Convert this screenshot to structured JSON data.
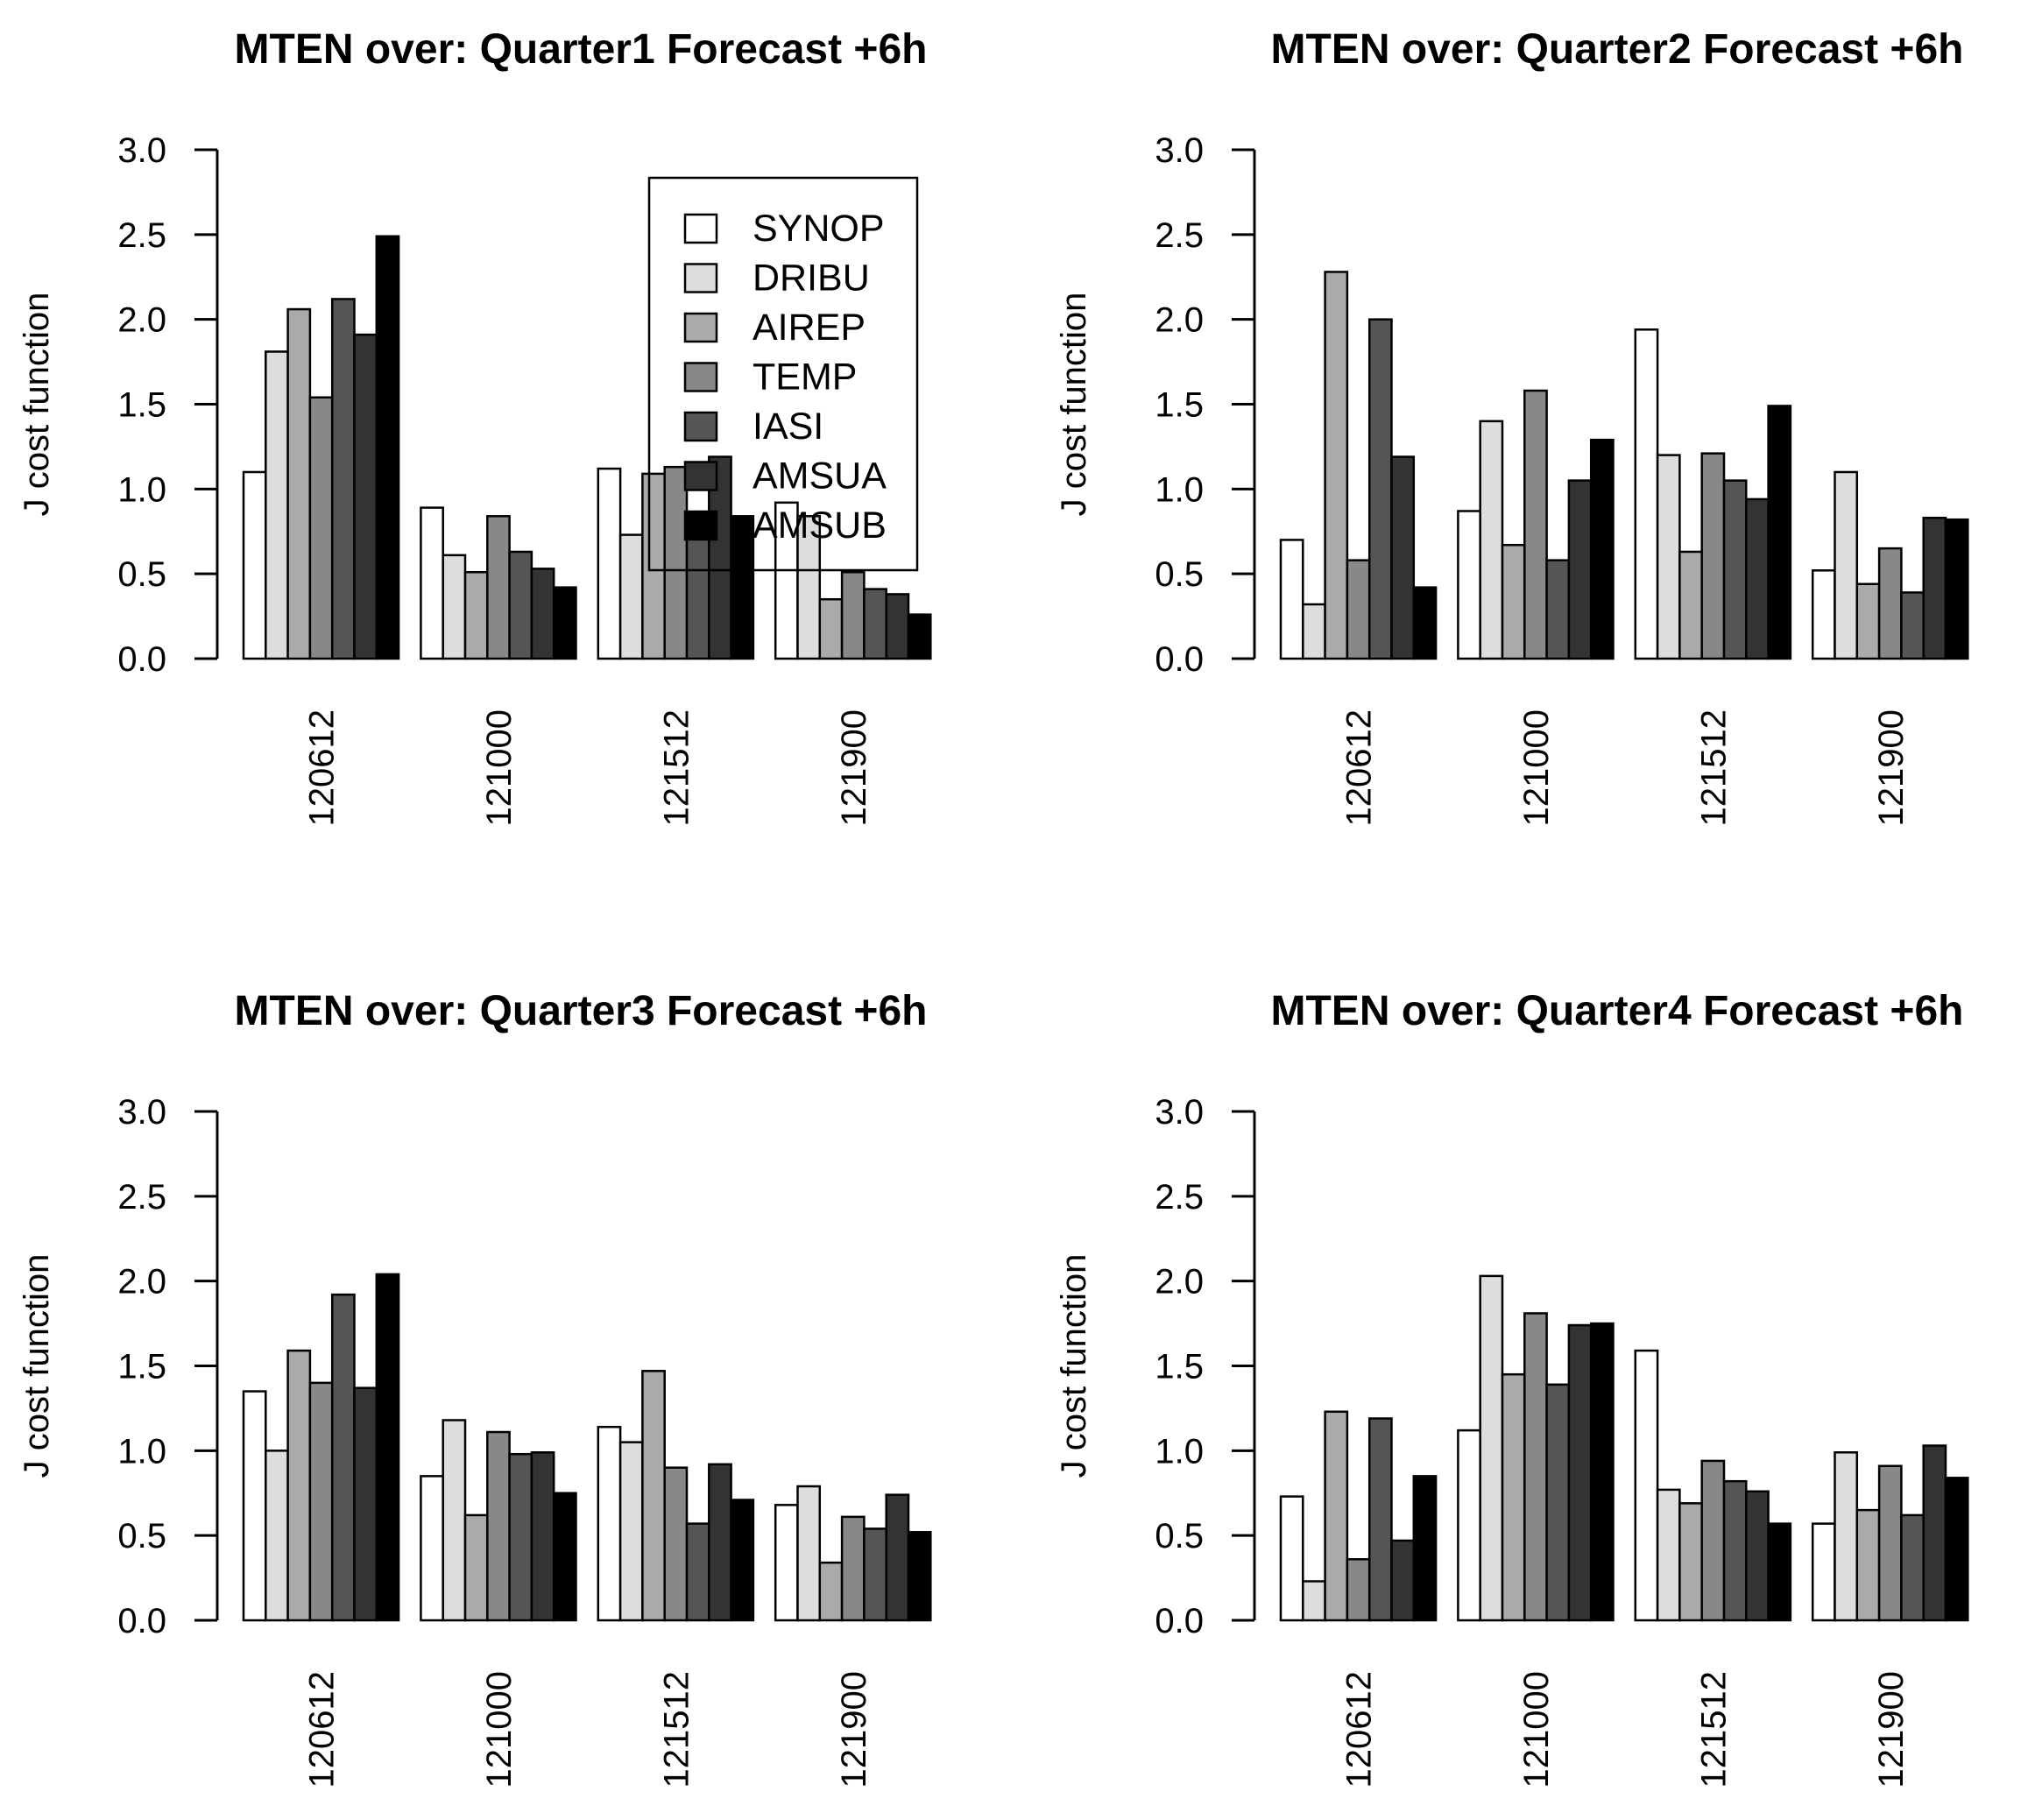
{
  "chart_data": [
    {
      "type": "bar",
      "title": "MTEN over: Quarter1 Forecast +6h",
      "xlabel": "",
      "ylabel": "J cost function",
      "ylim": [
        0,
        3
      ],
      "yticks": [
        "0.0",
        "0.5",
        "1.0",
        "1.5",
        "2.0",
        "2.5",
        "3.0"
      ],
      "categories": [
        "120612",
        "121000",
        "121512",
        "121900"
      ],
      "series": [
        {
          "name": "SYNOP",
          "values": [
            1.1,
            0.89,
            1.12,
            0.92
          ]
        },
        {
          "name": "DRIBU",
          "values": [
            1.81,
            0.61,
            0.73,
            0.84
          ]
        },
        {
          "name": "AIREP",
          "values": [
            2.06,
            0.51,
            1.09,
            0.35
          ]
        },
        {
          "name": "TEMP",
          "values": [
            1.54,
            0.84,
            1.13,
            0.51
          ]
        },
        {
          "name": "IASI",
          "values": [
            2.12,
            0.63,
            0.85,
            0.41
          ]
        },
        {
          "name": "AMSUA",
          "values": [
            1.91,
            0.53,
            1.19,
            0.38
          ]
        },
        {
          "name": "AMSUB",
          "values": [
            2.49,
            0.42,
            0.84,
            0.26
          ]
        }
      ],
      "legend": "top-right",
      "grid": false
    },
    {
      "type": "bar",
      "title": "MTEN over: Quarter2 Forecast +6h",
      "xlabel": "",
      "ylabel": "J cost function",
      "ylim": [
        0,
        3
      ],
      "yticks": [
        "0.0",
        "0.5",
        "1.0",
        "1.5",
        "2.0",
        "2.5",
        "3.0"
      ],
      "categories": [
        "120612",
        "121000",
        "121512",
        "121900"
      ],
      "series": [
        {
          "name": "SYNOP",
          "values": [
            0.7,
            0.87,
            1.94,
            0.52
          ]
        },
        {
          "name": "DRIBU",
          "values": [
            0.32,
            1.4,
            1.2,
            1.1
          ]
        },
        {
          "name": "AIREP",
          "values": [
            2.28,
            0.67,
            0.63,
            0.44
          ]
        },
        {
          "name": "TEMP",
          "values": [
            0.58,
            1.58,
            1.21,
            0.65
          ]
        },
        {
          "name": "IASI",
          "values": [
            2.0,
            0.58,
            1.05,
            0.39
          ]
        },
        {
          "name": "AMSUA",
          "values": [
            1.19,
            1.05,
            0.94,
            0.83
          ]
        },
        {
          "name": "AMSUB",
          "values": [
            0.42,
            1.29,
            1.49,
            0.82
          ]
        }
      ],
      "grid": false
    },
    {
      "type": "bar",
      "title": "MTEN over: Quarter3 Forecast +6h",
      "xlabel": "",
      "ylabel": "J cost function",
      "ylim": [
        0,
        3
      ],
      "yticks": [
        "0.0",
        "0.5",
        "1.0",
        "1.5",
        "2.0",
        "2.5",
        "3.0"
      ],
      "categories": [
        "120612",
        "121000",
        "121512",
        "121900"
      ],
      "series": [
        {
          "name": "SYNOP",
          "values": [
            1.35,
            0.85,
            1.14,
            0.68
          ]
        },
        {
          "name": "DRIBU",
          "values": [
            1.0,
            1.18,
            1.05,
            0.79
          ]
        },
        {
          "name": "AIREP",
          "values": [
            1.59,
            0.62,
            1.47,
            0.34
          ]
        },
        {
          "name": "TEMP",
          "values": [
            1.4,
            1.11,
            0.9,
            0.61
          ]
        },
        {
          "name": "IASI",
          "values": [
            1.92,
            0.98,
            0.57,
            0.54
          ]
        },
        {
          "name": "AMSUA",
          "values": [
            1.37,
            0.99,
            0.92,
            0.74
          ]
        },
        {
          "name": "AMSUB",
          "values": [
            2.04,
            0.75,
            0.71,
            0.52
          ]
        }
      ],
      "grid": false
    },
    {
      "type": "bar",
      "title": "MTEN over: Quarter4 Forecast +6h",
      "xlabel": "",
      "ylabel": "J cost function",
      "ylim": [
        0,
        3
      ],
      "yticks": [
        "0.0",
        "0.5",
        "1.0",
        "1.5",
        "2.0",
        "2.5",
        "3.0"
      ],
      "categories": [
        "120612",
        "121000",
        "121512",
        "121900"
      ],
      "series": [
        {
          "name": "SYNOP",
          "values": [
            0.73,
            1.12,
            1.59,
            0.57
          ]
        },
        {
          "name": "DRIBU",
          "values": [
            0.23,
            2.03,
            0.77,
            0.99
          ]
        },
        {
          "name": "AIREP",
          "values": [
            1.23,
            1.45,
            0.69,
            0.65
          ]
        },
        {
          "name": "TEMP",
          "values": [
            0.36,
            1.81,
            0.94,
            0.91
          ]
        },
        {
          "name": "IASI",
          "values": [
            1.19,
            1.39,
            0.82,
            0.62
          ]
        },
        {
          "name": "AMSUA",
          "values": [
            0.47,
            1.74,
            0.76,
            1.03
          ]
        },
        {
          "name": "AMSUB",
          "values": [
            0.85,
            1.75,
            0.57,
            0.84
          ]
        }
      ],
      "grid": false
    }
  ],
  "series_colors": [
    "#ffffff",
    "#dddddd",
    "#aaaaaa",
    "#888888",
    "#555555",
    "#333333",
    "#000000"
  ]
}
